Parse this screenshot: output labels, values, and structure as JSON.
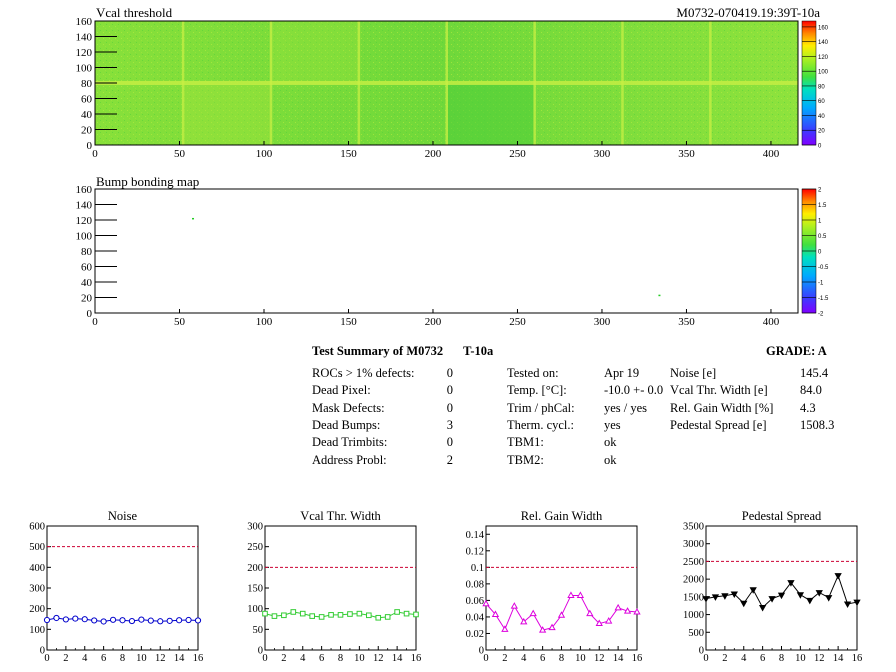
{
  "header": {
    "run_id": "M0732-070419.19:39T-10a"
  },
  "maps": [
    {
      "title": "Vcal threshold",
      "x_ticks": [
        "0",
        "50",
        "100",
        "150",
        "200",
        "250",
        "300",
        "350",
        "400"
      ],
      "y_ticks": [
        "0",
        "20",
        "40",
        "60",
        "80",
        "100",
        "120",
        "140",
        "160"
      ],
      "xlim": [
        0,
        416
      ],
      "ylim": [
        0,
        160
      ],
      "colorbar_ticks": [
        "0",
        "20",
        "40",
        "60",
        "80",
        "100",
        "120",
        "140",
        "160"
      ],
      "colorbar_range": [
        0,
        168
      ]
    },
    {
      "title": "Bump bonding map",
      "x_ticks": [
        "0",
        "50",
        "100",
        "150",
        "200",
        "250",
        "300",
        "350",
        "400"
      ],
      "y_ticks": [
        "0",
        "20",
        "40",
        "60",
        "80",
        "100",
        "120",
        "140",
        "160"
      ],
      "xlim": [
        0,
        416
      ],
      "ylim": [
        0,
        160
      ],
      "colorbar_ticks": [
        "-2",
        "-1.5",
        "-1",
        "-0.5",
        "0",
        "0.5",
        "1",
        "1.5",
        "2"
      ],
      "colorbar_range": [
        -2,
        2
      ],
      "points": [
        {
          "x": 58,
          "y": 122
        },
        {
          "x": 334,
          "y": 23
        }
      ]
    }
  ],
  "summary": {
    "title": "Test Summary of M0732",
    "temp_label": "T-10a",
    "grade": "GRADE:  A",
    "left": [
      {
        "label": "ROCs > 1% defects:",
        "value": "0"
      },
      {
        "label": "Dead Pixel:",
        "value": "0"
      },
      {
        "label": "Mask Defects:",
        "value": "0"
      },
      {
        "label": "Dead Bumps:",
        "value": "3"
      },
      {
        "label": "Dead Trimbits:",
        "value": "0"
      },
      {
        "label": "Address Probl:",
        "value": "2"
      }
    ],
    "middle": [
      {
        "label": "Tested on:",
        "value": "Apr 19"
      },
      {
        "label": "Temp. [°C]:",
        "value": "-10.0 +- 0.0"
      },
      {
        "label": "Trim / phCal:",
        "value": "yes / yes"
      },
      {
        "label": "Therm. cycl.:",
        "value": "yes"
      },
      {
        "label": "TBM1:",
        "value": "ok"
      },
      {
        "label": "TBM2:",
        "value": "ok"
      }
    ],
    "right": [
      {
        "label": "Noise [e]",
        "value": "145.4"
      },
      {
        "label": "Vcal Thr. Width [e]",
        "value": "84.0"
      },
      {
        "label": "Rel. Gain Width [%]",
        "value": "4.3"
      },
      {
        "label": "Pedestal Spread [e]",
        "value": "1508.3"
      }
    ]
  },
  "chart_data": [
    {
      "type": "line",
      "title": "Noise",
      "x": [
        0,
        1,
        2,
        3,
        4,
        5,
        6,
        7,
        8,
        9,
        10,
        11,
        12,
        13,
        14,
        15,
        16
      ],
      "values": [
        145,
        155,
        148,
        152,
        149,
        143,
        138,
        146,
        144,
        140,
        147,
        142,
        139,
        141,
        144,
        145,
        143
      ],
      "ylim": [
        0,
        600
      ],
      "xlim": [
        0,
        16
      ],
      "y_ticks": [
        "0",
        "100",
        "200",
        "300",
        "400",
        "500",
        "600"
      ],
      "x_ticks": [
        "0",
        "2",
        "4",
        "6",
        "8",
        "10",
        "12",
        "14",
        "16"
      ],
      "threshold": 500,
      "color": "#0000cc",
      "marker": "circle"
    },
    {
      "type": "line",
      "title": "Vcal Thr. Width",
      "x": [
        0,
        1,
        2,
        3,
        4,
        5,
        6,
        7,
        8,
        9,
        10,
        11,
        12,
        13,
        14,
        15,
        16
      ],
      "values": [
        88,
        82,
        84,
        92,
        88,
        82,
        80,
        85,
        85,
        87,
        88,
        84,
        78,
        80,
        92,
        88,
        86
      ],
      "ylim": [
        0,
        300
      ],
      "xlim": [
        0,
        16
      ],
      "y_ticks": [
        "0",
        "50",
        "100",
        "150",
        "200",
        "250",
        "300"
      ],
      "x_ticks": [
        "0",
        "2",
        "4",
        "6",
        "8",
        "10",
        "12",
        "14",
        "16"
      ],
      "threshold": 200,
      "color": "#33cc33",
      "marker": "square"
    },
    {
      "type": "line",
      "title": "Rel. Gain Width",
      "x": [
        0,
        1,
        2,
        3,
        4,
        5,
        6,
        7,
        8,
        9,
        10,
        11,
        12,
        13,
        14,
        15,
        16
      ],
      "values": [
        0.056,
        0.043,
        0.025,
        0.053,
        0.034,
        0.044,
        0.024,
        0.027,
        0.042,
        0.066,
        0.066,
        0.044,
        0.032,
        0.035,
        0.051,
        0.047,
        0.046
      ],
      "ylim": [
        0,
        0.15
      ],
      "xlim": [
        0,
        16
      ],
      "y_ticks": [
        "0",
        "0.02",
        "0.04",
        "0.06",
        "0.08",
        "0.1",
        "0.12",
        "0.14"
      ],
      "x_ticks": [
        "0",
        "2",
        "4",
        "6",
        "8",
        "10",
        "12",
        "14",
        "16"
      ],
      "threshold": 0.1,
      "color": "#dd00dd",
      "marker": "triangle"
    },
    {
      "type": "line",
      "title": "Pedestal Spread",
      "x": [
        0,
        1,
        2,
        3,
        4,
        5,
        6,
        7,
        8,
        9,
        10,
        11,
        12,
        13,
        14,
        15,
        16
      ],
      "values": [
        1450,
        1500,
        1530,
        1580,
        1320,
        1700,
        1200,
        1450,
        1550,
        1900,
        1560,
        1400,
        1620,
        1480,
        2100,
        1300,
        1350
      ],
      "ylim": [
        0,
        3500
      ],
      "xlim": [
        0,
        16
      ],
      "y_ticks": [
        "0",
        "500",
        "1000",
        "1500",
        "2000",
        "2500",
        "3000",
        "3500"
      ],
      "x_ticks": [
        "0",
        "2",
        "4",
        "6",
        "8",
        "10",
        "12",
        "14",
        "16"
      ],
      "threshold": 2500,
      "color": "#000000",
      "marker": "triangle-down"
    }
  ]
}
